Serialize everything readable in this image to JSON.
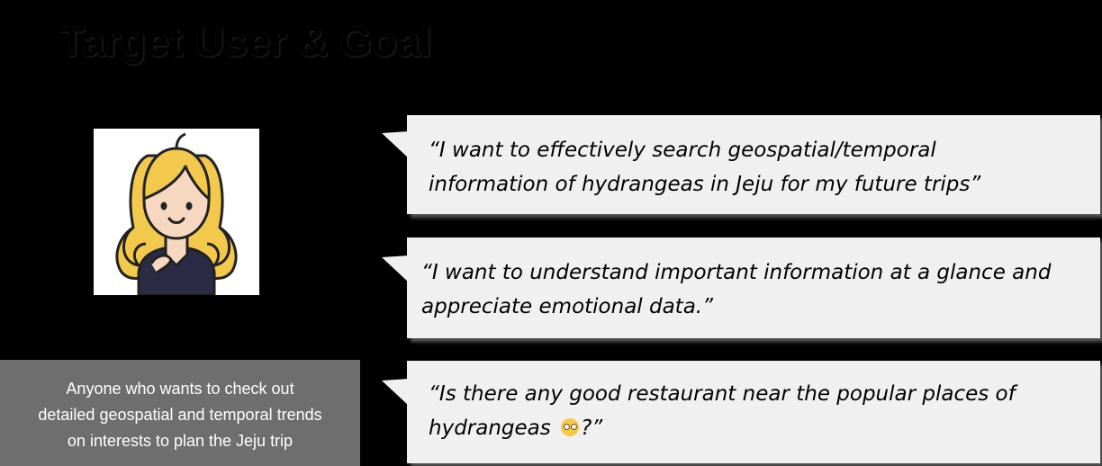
{
  "slide": {
    "title": "Target User & Goal"
  },
  "persona": {
    "description_lines": [
      "Anyone who wants to check out",
      "detailed geospatial and temporal trends",
      "on interests to plan the  Jeju trip"
    ]
  },
  "quotes": [
    {
      "lines": [
        "“I want to effectively search geospatial/temporal",
        "information of hydrangeas in Jeju  for my future trips”"
      ]
    },
    {
      "lines": [
        "“I want to understand important information at a glance and",
        "appreciate emotional data.”"
      ]
    },
    {
      "lines": [
        "“Is there any good restaurant near the popular places of",
        "hydrangeas",
        "?”"
      ],
      "emoji": "flushed-face-emoji"
    }
  ],
  "colors": {
    "background": "#000000",
    "bubble": "#f0f0f0",
    "persona_box": "#6e6e6e",
    "hair": "#f2c94c",
    "skin": "#f6d8c0",
    "shirt": "#2b2b45"
  },
  "icons": {
    "avatar": "woman-avatar-icon"
  }
}
